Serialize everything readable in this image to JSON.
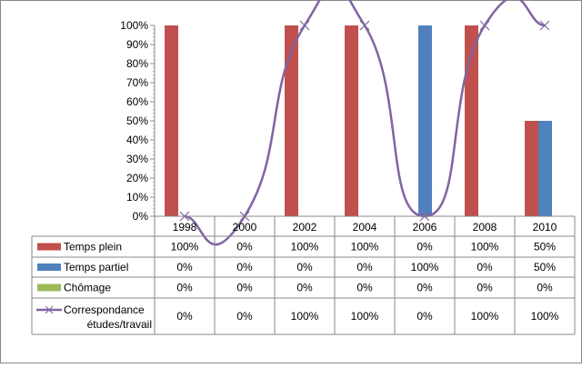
{
  "chart_data": {
    "type": "bar",
    "title": "",
    "categories": [
      "1998",
      "2000",
      "2002",
      "2004",
      "2006",
      "2008",
      "2010"
    ],
    "ylim": [
      0,
      100
    ],
    "yticks": [
      "0%",
      "10%",
      "20%",
      "30%",
      "40%",
      "50%",
      "60%",
      "70%",
      "80%",
      "90%",
      "100%"
    ],
    "series": [
      {
        "name": "Temps plein",
        "type": "bar",
        "color": "#C0504D",
        "values": [
          100,
          0,
          100,
          100,
          0,
          100,
          50
        ],
        "labels": [
          "100%",
          "0%",
          "100%",
          "100%",
          "0%",
          "100%",
          "50%"
        ]
      },
      {
        "name": "Temps partiel",
        "type": "bar",
        "color": "#4F81BD",
        "values": [
          0,
          0,
          0,
          0,
          100,
          0,
          50
        ],
        "labels": [
          "0%",
          "0%",
          "0%",
          "0%",
          "100%",
          "0%",
          "50%"
        ]
      },
      {
        "name": "Chômage",
        "type": "bar",
        "color": "#9BBB59",
        "values": [
          0,
          0,
          0,
          0,
          0,
          0,
          0
        ],
        "labels": [
          "0%",
          "0%",
          "0%",
          "0%",
          "0%",
          "0%",
          "0%"
        ]
      },
      {
        "name": "Correspondance études/travail",
        "name_lines": [
          "Correspondance",
          "études/travail"
        ],
        "type": "line",
        "color": "#8064A2",
        "values": [
          0,
          0,
          100,
          100,
          0,
          100,
          100
        ],
        "labels": [
          "0%",
          "0%",
          "100%",
          "100%",
          "0%",
          "100%",
          "100%"
        ]
      }
    ],
    "legend": "data-table"
  }
}
